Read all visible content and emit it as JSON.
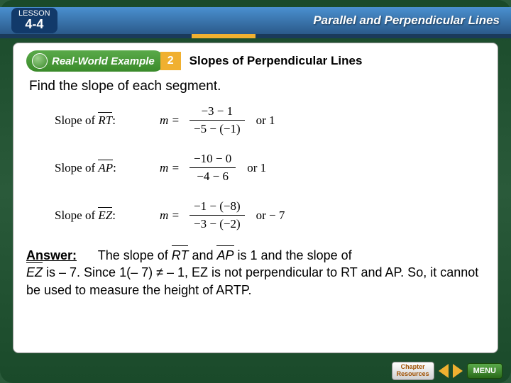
{
  "colors": {
    "frame_green": "#2a5a3a",
    "bar_blue_top": "#4a90d0",
    "bar_blue_bot": "#2b5a8a",
    "accent_gold": "#f0b030",
    "pill_green": "#3a8a2a"
  },
  "header": {
    "lesson_label": "LESSON",
    "lesson_number": "4-4",
    "chapter_title": "Parallel and Perpendicular Lines"
  },
  "example": {
    "pill_label": "Real-World Example",
    "number": "2",
    "title": "Slopes of Perpendicular Lines"
  },
  "instruction": "Find the slope of each segment.",
  "rows": [
    {
      "label_prefix": "Slope of ",
      "segment": "RT",
      "lhs": "m",
      "numerator": "−3 − 1",
      "denominator": "−5 − (−1)",
      "result": "1"
    },
    {
      "label_prefix": "Slope of ",
      "segment": "AP",
      "lhs": "m",
      "numerator": "−10 − 0",
      "denominator": "−4 − 6",
      "result": "1"
    },
    {
      "label_prefix": "Slope of ",
      "segment": "EZ",
      "lhs": "m",
      "numerator": "−1 − (−8)",
      "denominator": "−3 − (−2)",
      "result": "− 7"
    }
  ],
  "answer": {
    "label": "Answer:",
    "part1a": "The slope of ",
    "seg1": "RT",
    "part1b": " and ",
    "seg2": "AP",
    "part1c": " is 1 and the slope of",
    "part2a": "EZ",
    "part2b": " is – 7. Since 1(– 7) ≠ – 1, EZ is not perpendicular to RT and AP. So, it cannot be used to measure the height of ARTP."
  },
  "nav": {
    "chapter_btn_line1": "Chapter",
    "chapter_btn_line2": "Resources",
    "menu": "MENU"
  }
}
